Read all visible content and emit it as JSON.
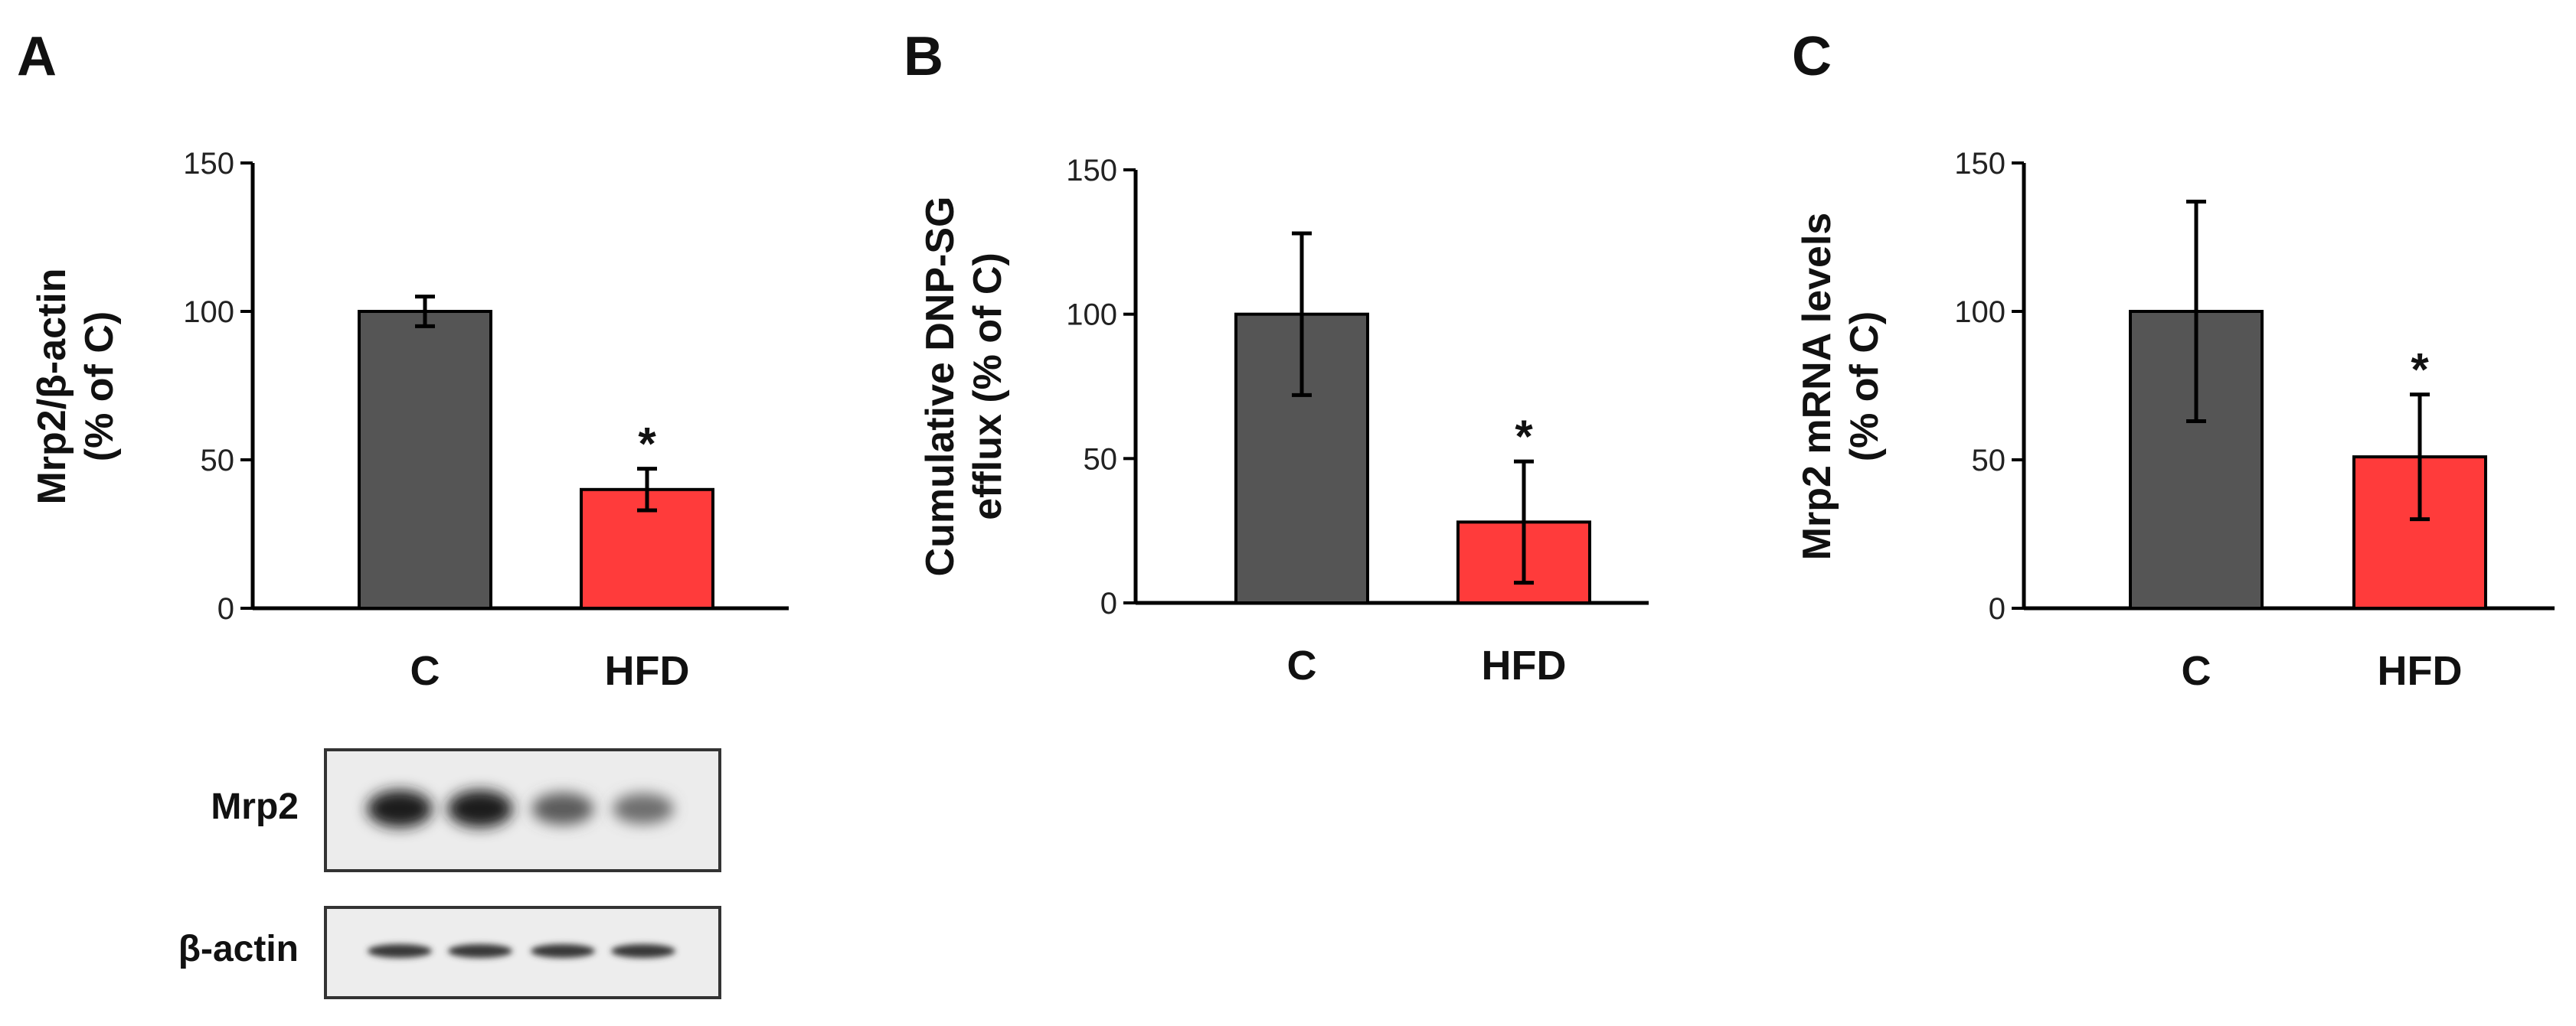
{
  "panels": [
    {
      "letter": "A"
    },
    {
      "letter": "B"
    },
    {
      "letter": "C"
    }
  ],
  "chart_data": [
    {
      "type": "bar",
      "categories": [
        "C",
        "HFD"
      ],
      "values": [
        100,
        40
      ],
      "errors": [
        5,
        7
      ],
      "significance": [
        "",
        "*"
      ],
      "ylabel_lines": [
        "Mrp2/β-actin",
        "(% of C)"
      ],
      "ylim": [
        0,
        150
      ],
      "yticks": [
        0,
        50,
        100,
        150
      ],
      "colors": [
        "#555555",
        "#ff3b3b"
      ],
      "grid": false
    },
    {
      "type": "bar",
      "categories": [
        "C",
        "HFD"
      ],
      "values": [
        100,
        28
      ],
      "errors": [
        28,
        21
      ],
      "significance": [
        "",
        "*"
      ],
      "ylabel_lines": [
        "Cumulative DNP-SG",
        "efflux (% of C)"
      ],
      "ylim": [
        0,
        150
      ],
      "yticks": [
        0,
        50,
        100,
        150
      ],
      "colors": [
        "#555555",
        "#ff3b3b"
      ],
      "grid": false
    },
    {
      "type": "bar",
      "categories": [
        "C",
        "HFD"
      ],
      "values": [
        100,
        51
      ],
      "errors": [
        37,
        21
      ],
      "significance": [
        "",
        "*"
      ],
      "ylabel_lines": [
        "Mrp2 mRNA levels",
        "(% of C)"
      ],
      "ylim": [
        0,
        150
      ],
      "yticks": [
        0,
        50,
        100,
        150
      ],
      "colors": [
        "#555555",
        "#ff3b3b"
      ],
      "grid": false
    }
  ],
  "blot": {
    "rows": [
      {
        "label": "Mrp2",
        "band_intensity": [
          0.95,
          0.95,
          0.6,
          0.5
        ]
      },
      {
        "label": "β-actin",
        "band_intensity": [
          0.8,
          0.8,
          0.8,
          0.8
        ]
      }
    ]
  }
}
